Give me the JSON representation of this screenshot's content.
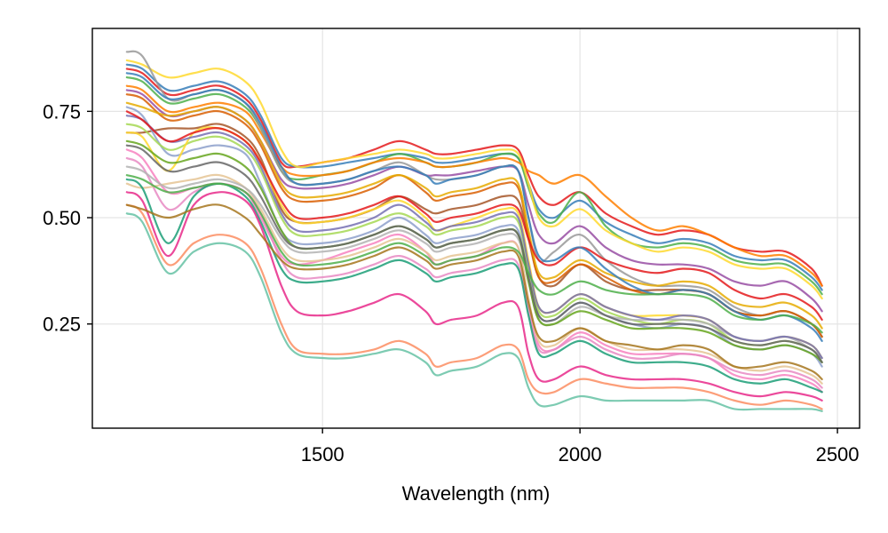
{
  "chart_data": {
    "type": "line",
    "title": "",
    "xlabel": "Wavelength (nm)",
    "ylabel": "",
    "xlim": [
      1053,
      2543
    ],
    "ylim": [
      0.005,
      0.945
    ],
    "xticks": [
      1500,
      2000,
      2500
    ],
    "xtick_labels": [
      "1500",
      "2000",
      "2500"
    ],
    "yticks": [
      0.25,
      0.5,
      0.75
    ],
    "ytick_labels": [
      "0.25",
      "0.50",
      "0.75"
    ],
    "grid": true,
    "legend": "none",
    "x": [
      1120,
      1150,
      1200,
      1250,
      1300,
      1350,
      1380,
      1420,
      1450,
      1500,
      1550,
      1600,
      1650,
      1700,
      1720,
      1750,
      1800,
      1850,
      1880,
      1900,
      1920,
      1950,
      2000,
      2050,
      2100,
      2150,
      2200,
      2250,
      2300,
      2350,
      2400,
      2450,
      2470
    ],
    "series": [
      {
        "color": "#e41a1c",
        "values": [
          0.85,
          0.84,
          0.79,
          0.8,
          0.81,
          0.78,
          0.73,
          0.63,
          0.62,
          0.63,
          0.64,
          0.66,
          0.68,
          0.66,
          0.65,
          0.65,
          0.66,
          0.67,
          0.66,
          0.6,
          0.55,
          0.53,
          0.56,
          0.51,
          0.48,
          0.46,
          0.47,
          0.46,
          0.43,
          0.42,
          0.42,
          0.38,
          0.34
        ]
      },
      {
        "color": "#377eb8",
        "values": [
          0.86,
          0.85,
          0.8,
          0.81,
          0.82,
          0.79,
          0.74,
          0.64,
          0.62,
          0.62,
          0.63,
          0.64,
          0.65,
          0.64,
          0.63,
          0.63,
          0.64,
          0.65,
          0.64,
          0.58,
          0.52,
          0.5,
          0.54,
          0.49,
          0.46,
          0.44,
          0.45,
          0.44,
          0.41,
          0.4,
          0.4,
          0.36,
          0.33
        ]
      },
      {
        "color": "#4daf4a",
        "values": [
          0.83,
          0.82,
          0.77,
          0.78,
          0.79,
          0.76,
          0.71,
          0.61,
          0.59,
          0.6,
          0.61,
          0.63,
          0.65,
          0.63,
          0.62,
          0.62,
          0.63,
          0.65,
          0.64,
          0.57,
          0.51,
          0.49,
          0.56,
          0.48,
          0.44,
          0.43,
          0.44,
          0.43,
          0.4,
          0.39,
          0.39,
          0.35,
          0.32
        ]
      },
      {
        "color": "#984ea3",
        "values": [
          0.8,
          0.79,
          0.74,
          0.75,
          0.76,
          0.73,
          0.68,
          0.59,
          0.57,
          0.57,
          0.58,
          0.6,
          0.62,
          0.6,
          0.6,
          0.6,
          0.61,
          0.62,
          0.61,
          0.53,
          0.46,
          0.44,
          0.48,
          0.43,
          0.4,
          0.39,
          0.39,
          0.38,
          0.35,
          0.34,
          0.35,
          0.31,
          0.28
        ]
      },
      {
        "color": "#ff7f00",
        "values": [
          0.81,
          0.8,
          0.75,
          0.76,
          0.77,
          0.75,
          0.7,
          0.62,
          0.6,
          0.6,
          0.61,
          0.63,
          0.64,
          0.63,
          0.62,
          0.62,
          0.63,
          0.64,
          0.63,
          0.61,
          0.6,
          0.58,
          0.6,
          0.55,
          0.5,
          0.47,
          0.48,
          0.46,
          0.43,
          0.41,
          0.41,
          0.37,
          0.34
        ]
      },
      {
        "color": "#ffd92f",
        "values": [
          0.87,
          0.86,
          0.83,
          0.84,
          0.85,
          0.82,
          0.77,
          0.66,
          0.62,
          0.63,
          0.64,
          0.65,
          0.66,
          0.65,
          0.64,
          0.64,
          0.65,
          0.66,
          0.65,
          0.58,
          0.5,
          0.48,
          0.52,
          0.47,
          0.44,
          0.42,
          0.43,
          0.42,
          0.39,
          0.38,
          0.38,
          0.34,
          0.31
        ]
      },
      {
        "color": "#a65628",
        "values": [
          0.7,
          0.7,
          0.71,
          0.71,
          0.72,
          0.69,
          0.64,
          0.52,
          0.49,
          0.49,
          0.5,
          0.52,
          0.55,
          0.52,
          0.51,
          0.52,
          0.53,
          0.55,
          0.54,
          0.45,
          0.36,
          0.34,
          0.39,
          0.35,
          0.33,
          0.33,
          0.33,
          0.32,
          0.28,
          0.27,
          0.28,
          0.25,
          0.22
        ]
      },
      {
        "color": "#f781bf",
        "values": [
          0.66,
          0.64,
          0.56,
          0.57,
          0.58,
          0.56,
          0.5,
          0.41,
          0.39,
          0.4,
          0.42,
          0.44,
          0.46,
          0.42,
          0.39,
          0.4,
          0.41,
          0.44,
          0.43,
          0.3,
          0.2,
          0.19,
          0.23,
          0.2,
          0.18,
          0.18,
          0.18,
          0.17,
          0.13,
          0.12,
          0.13,
          0.11,
          0.09
        ]
      },
      {
        "color": "#999999",
        "values": [
          0.89,
          0.88,
          0.78,
          0.79,
          0.8,
          0.77,
          0.71,
          0.61,
          0.58,
          0.58,
          0.59,
          0.61,
          0.63,
          0.6,
          0.59,
          0.59,
          0.6,
          0.62,
          0.61,
          0.5,
          0.4,
          0.42,
          0.46,
          0.4,
          0.36,
          0.34,
          0.34,
          0.33,
          0.29,
          0.27,
          0.28,
          0.25,
          0.22
        ]
      },
      {
        "color": "#66c2a5",
        "values": [
          0.51,
          0.49,
          0.37,
          0.42,
          0.44,
          0.42,
          0.36,
          0.23,
          0.18,
          0.17,
          0.17,
          0.18,
          0.19,
          0.16,
          0.13,
          0.14,
          0.15,
          0.18,
          0.17,
          0.1,
          0.06,
          0.06,
          0.08,
          0.07,
          0.07,
          0.07,
          0.07,
          0.07,
          0.05,
          0.05,
          0.05,
          0.05,
          0.045
        ]
      },
      {
        "color": "#fc8d62",
        "values": [
          0.53,
          0.51,
          0.39,
          0.44,
          0.46,
          0.44,
          0.38,
          0.25,
          0.19,
          0.18,
          0.18,
          0.19,
          0.21,
          0.18,
          0.15,
          0.16,
          0.17,
          0.2,
          0.19,
          0.12,
          0.09,
          0.09,
          0.12,
          0.11,
          0.1,
          0.1,
          0.1,
          0.09,
          0.07,
          0.06,
          0.07,
          0.06,
          0.05
        ]
      },
      {
        "color": "#8da0cb",
        "values": [
          0.76,
          0.74,
          0.65,
          0.66,
          0.67,
          0.65,
          0.58,
          0.47,
          0.44,
          0.44,
          0.45,
          0.47,
          0.5,
          0.46,
          0.44,
          0.45,
          0.46,
          0.48,
          0.47,
          0.36,
          0.27,
          0.26,
          0.3,
          0.27,
          0.25,
          0.24,
          0.25,
          0.24,
          0.2,
          0.19,
          0.2,
          0.18,
          0.15
        ]
      },
      {
        "color": "#e78ac3",
        "values": [
          0.64,
          0.62,
          0.52,
          0.56,
          0.58,
          0.56,
          0.51,
          0.4,
          0.36,
          0.36,
          0.37,
          0.39,
          0.41,
          0.38,
          0.36,
          0.37,
          0.38,
          0.4,
          0.39,
          0.28,
          0.19,
          0.19,
          0.22,
          0.19,
          0.17,
          0.17,
          0.18,
          0.17,
          0.14,
          0.13,
          0.14,
          0.12,
          0.1
        ]
      },
      {
        "color": "#a6d854",
        "values": [
          0.72,
          0.71,
          0.66,
          0.68,
          0.69,
          0.66,
          0.61,
          0.5,
          0.46,
          0.46,
          0.47,
          0.49,
          0.51,
          0.48,
          0.46,
          0.47,
          0.48,
          0.5,
          0.49,
          0.38,
          0.28,
          0.27,
          0.31,
          0.28,
          0.26,
          0.25,
          0.26,
          0.25,
          0.21,
          0.2,
          0.21,
          0.19,
          0.16
        ]
      },
      {
        "color": "#ffd92f",
        "values": [
          0.7,
          0.69,
          0.61,
          0.7,
          0.71,
          0.68,
          0.63,
          0.53,
          0.49,
          0.49,
          0.5,
          0.52,
          0.54,
          0.5,
          0.47,
          0.48,
          0.5,
          0.52,
          0.51,
          0.4,
          0.29,
          0.28,
          0.32,
          0.29,
          0.27,
          0.27,
          0.27,
          0.26,
          0.22,
          0.21,
          0.22,
          0.2,
          0.17
        ]
      },
      {
        "color": "#e5c494",
        "values": [
          0.58,
          0.57,
          0.58,
          0.59,
          0.6,
          0.57,
          0.52,
          0.43,
          0.4,
          0.4,
          0.41,
          0.43,
          0.45,
          0.42,
          0.4,
          0.41,
          0.42,
          0.44,
          0.43,
          0.31,
          0.21,
          0.2,
          0.24,
          0.21,
          0.19,
          0.19,
          0.19,
          0.18,
          0.15,
          0.14,
          0.15,
          0.13,
          0.11
        ]
      },
      {
        "color": "#b3b3b3",
        "values": [
          0.62,
          0.61,
          0.57,
          0.58,
          0.59,
          0.57,
          0.53,
          0.45,
          0.42,
          0.42,
          0.43,
          0.45,
          0.47,
          0.44,
          0.42,
          0.43,
          0.44,
          0.46,
          0.45,
          0.35,
          0.26,
          0.25,
          0.29,
          0.27,
          0.26,
          0.26,
          0.26,
          0.25,
          0.22,
          0.21,
          0.22,
          0.19,
          0.17
        ]
      },
      {
        "color": "#1b9e77",
        "values": [
          0.59,
          0.57,
          0.44,
          0.55,
          0.58,
          0.55,
          0.49,
          0.38,
          0.35,
          0.35,
          0.36,
          0.38,
          0.4,
          0.37,
          0.35,
          0.36,
          0.37,
          0.39,
          0.38,
          0.27,
          0.18,
          0.18,
          0.21,
          0.18,
          0.16,
          0.16,
          0.16,
          0.15,
          0.12,
          0.11,
          0.12,
          0.1,
          0.09
        ]
      },
      {
        "color": "#d95f02",
        "values": [
          0.79,
          0.78,
          0.73,
          0.74,
          0.75,
          0.72,
          0.67,
          0.57,
          0.54,
          0.54,
          0.55,
          0.57,
          0.6,
          0.56,
          0.54,
          0.55,
          0.56,
          0.58,
          0.57,
          0.46,
          0.36,
          0.35,
          0.39,
          0.36,
          0.33,
          0.32,
          0.33,
          0.32,
          0.28,
          0.27,
          0.28,
          0.25,
          0.22
        ]
      },
      {
        "color": "#7570b3",
        "values": [
          0.74,
          0.73,
          0.68,
          0.69,
          0.7,
          0.67,
          0.62,
          0.51,
          0.47,
          0.47,
          0.48,
          0.5,
          0.53,
          0.49,
          0.47,
          0.48,
          0.49,
          0.51,
          0.5,
          0.39,
          0.29,
          0.28,
          0.32,
          0.29,
          0.27,
          0.26,
          0.27,
          0.26,
          0.22,
          0.21,
          0.22,
          0.2,
          0.17
        ]
      },
      {
        "color": "#e7298a",
        "values": [
          0.56,
          0.54,
          0.41,
          0.53,
          0.56,
          0.54,
          0.48,
          0.34,
          0.28,
          0.27,
          0.28,
          0.3,
          0.32,
          0.28,
          0.25,
          0.26,
          0.27,
          0.3,
          0.29,
          0.18,
          0.12,
          0.12,
          0.15,
          0.13,
          0.12,
          0.12,
          0.12,
          0.11,
          0.09,
          0.08,
          0.09,
          0.08,
          0.07
        ]
      },
      {
        "color": "#66a61e",
        "values": [
          0.68,
          0.67,
          0.63,
          0.64,
          0.65,
          0.62,
          0.57,
          0.47,
          0.43,
          0.43,
          0.44,
          0.46,
          0.48,
          0.45,
          0.43,
          0.44,
          0.45,
          0.47,
          0.46,
          0.35,
          0.26,
          0.25,
          0.28,
          0.26,
          0.24,
          0.24,
          0.24,
          0.23,
          0.2,
          0.19,
          0.2,
          0.18,
          0.16
        ]
      },
      {
        "color": "#e6ab02",
        "values": [
          0.77,
          0.76,
          0.74,
          0.75,
          0.76,
          0.73,
          0.68,
          0.58,
          0.55,
          0.55,
          0.56,
          0.58,
          0.6,
          0.57,
          0.55,
          0.56,
          0.57,
          0.59,
          0.58,
          0.47,
          0.37,
          0.36,
          0.4,
          0.37,
          0.35,
          0.34,
          0.35,
          0.34,
          0.3,
          0.29,
          0.3,
          0.27,
          0.24
        ]
      },
      {
        "color": "#a6761d",
        "values": [
          0.53,
          0.52,
          0.5,
          0.52,
          0.53,
          0.5,
          0.46,
          0.4,
          0.38,
          0.38,
          0.39,
          0.41,
          0.43,
          0.4,
          0.38,
          0.39,
          0.4,
          0.42,
          0.41,
          0.3,
          0.22,
          0.21,
          0.24,
          0.21,
          0.2,
          0.19,
          0.2,
          0.19,
          0.15,
          0.15,
          0.16,
          0.14,
          0.12
        ]
      },
      {
        "color": "#666666",
        "values": [
          0.67,
          0.66,
          0.61,
          0.62,
          0.63,
          0.6,
          0.55,
          0.46,
          0.43,
          0.43,
          0.44,
          0.46,
          0.48,
          0.45,
          0.43,
          0.44,
          0.45,
          0.47,
          0.46,
          0.36,
          0.27,
          0.26,
          0.3,
          0.27,
          0.25,
          0.25,
          0.25,
          0.24,
          0.21,
          0.2,
          0.21,
          0.19,
          0.16
        ]
      },
      {
        "color": "#e41a1c",
        "values": [
          0.75,
          0.73,
          0.68,
          0.7,
          0.71,
          0.68,
          0.63,
          0.54,
          0.5,
          0.5,
          0.51,
          0.53,
          0.55,
          0.51,
          0.49,
          0.5,
          0.51,
          0.53,
          0.52,
          0.45,
          0.4,
          0.39,
          0.43,
          0.4,
          0.38,
          0.37,
          0.38,
          0.37,
          0.33,
          0.31,
          0.32,
          0.29,
          0.26
        ]
      },
      {
        "color": "#377eb8",
        "values": [
          0.84,
          0.83,
          0.78,
          0.79,
          0.8,
          0.77,
          0.72,
          0.62,
          0.58,
          0.58,
          0.59,
          0.61,
          0.62,
          0.6,
          0.58,
          0.59,
          0.6,
          0.62,
          0.61,
          0.5,
          0.41,
          0.4,
          0.43,
          0.38,
          0.34,
          0.32,
          0.33,
          0.32,
          0.28,
          0.26,
          0.27,
          0.24,
          0.21
        ]
      },
      {
        "color": "#4daf4a",
        "values": [
          0.6,
          0.59,
          0.56,
          0.57,
          0.58,
          0.56,
          0.51,
          0.42,
          0.39,
          0.39,
          0.4,
          0.42,
          0.44,
          0.41,
          0.39,
          0.4,
          0.41,
          0.43,
          0.42,
          0.37,
          0.33,
          0.32,
          0.35,
          0.33,
          0.32,
          0.32,
          0.32,
          0.31,
          0.27,
          0.26,
          0.27,
          0.25,
          0.23
        ]
      }
    ]
  }
}
